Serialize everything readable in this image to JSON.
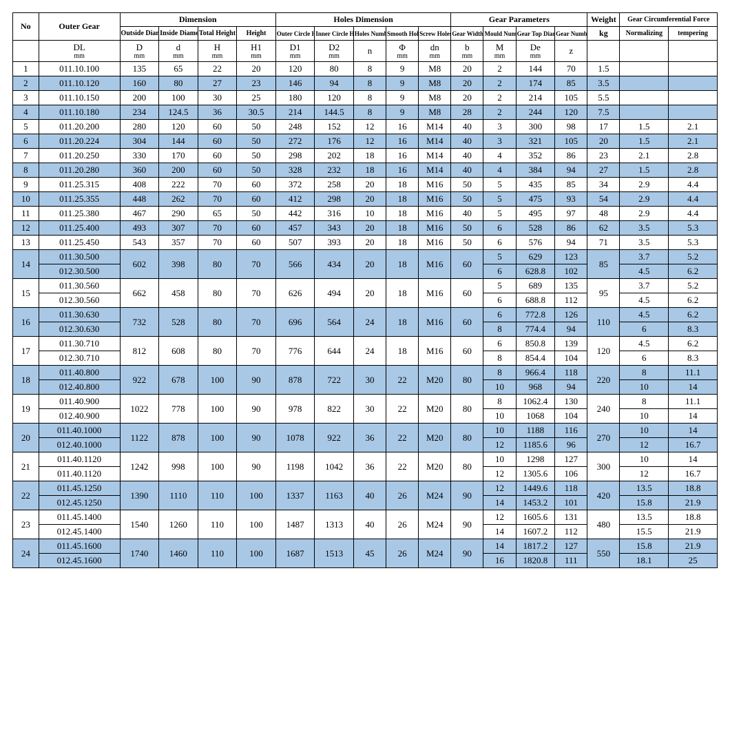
{
  "colors": {
    "highlight": "#a9c8e6",
    "border": "#000000",
    "bg": "#ffffff",
    "text": "#000000"
  },
  "font": {
    "family": "Times New Roman, serif",
    "header_pt": 12,
    "body_pt": 13
  },
  "header": {
    "groups": {
      "no": "No",
      "outer_gear": "Outer Gear",
      "dimension": "Dimension",
      "holes_dimension": "Holes Dimension",
      "gear_parameters": "Gear Parameters",
      "weight": "Weight",
      "gear_circ_force": "Gear Circumferential Force"
    },
    "subs": {
      "outside_diameter": "Outside Diameter",
      "inside_diameter": "Inside Diameter",
      "total_height": "Total Height",
      "height": "Height",
      "outer_circle_holes_gap": "Outer Circle Holes Gap",
      "inner_circle_holes_gap": "Inner Circle Holes Gap",
      "holes_number": "Holes Number",
      "smooth_holes": "Smooth Holes",
      "screw_holes": "Screw Holes",
      "gear_width": "Gear Width",
      "mould_number": "Mould Number",
      "gear_top_diameter": "Gear Top Diameter",
      "gear_number": "Gear Number",
      "kg": "kg",
      "normalizing": "Normalizing",
      "tempering": "tempering"
    },
    "symbols": {
      "dl": "DL",
      "dl_unit": "mm",
      "D": "D",
      "D_unit": "mm",
      "d": "d",
      "d_unit": "mm",
      "H": "H",
      "H_unit": "mm",
      "H1": "H1",
      "H1_unit": "mm",
      "D1": "D1",
      "D1_unit": "mm",
      "D2": "D2",
      "D2_unit": "mm",
      "n": "n",
      "phi": "Φ",
      "phi_unit": "mm",
      "dn": "dn",
      "dn_unit": "mm",
      "b": "b",
      "b_unit": "mm",
      "M": "M",
      "M_unit": "mm",
      "De": "De",
      "De_unit": "mm",
      "z": "z"
    }
  },
  "rows": [
    {
      "no": "1",
      "hl": false,
      "gear": [
        "011.10.100"
      ],
      "D": "135",
      "d": "65",
      "H": "22",
      "H1": "20",
      "D1": "120",
      "D2": "80",
      "n": "8",
      "phi": "9",
      "dn": "M8",
      "b": "20",
      "M": [
        "2"
      ],
      "De": [
        "144"
      ],
      "z": [
        "70"
      ],
      "kg": "1.5",
      "norm": [
        ""
      ],
      "temp": [
        ""
      ]
    },
    {
      "no": "2",
      "hl": true,
      "gear": [
        "011.10.120"
      ],
      "D": "160",
      "d": "80",
      "H": "27",
      "H1": "23",
      "D1": "146",
      "D2": "94",
      "n": "8",
      "phi": "9",
      "dn": "M8",
      "b": "20",
      "M": [
        "2"
      ],
      "De": [
        "174"
      ],
      "z": [
        "85"
      ],
      "kg": "3.5",
      "norm": [
        ""
      ],
      "temp": [
        ""
      ]
    },
    {
      "no": "3",
      "hl": false,
      "gear": [
        "011.10.150"
      ],
      "D": "200",
      "d": "100",
      "H": "30",
      "H1": "25",
      "D1": "180",
      "D2": "120",
      "n": "8",
      "phi": "9",
      "dn": "M8",
      "b": "20",
      "M": [
        "2"
      ],
      "De": [
        "214"
      ],
      "z": [
        "105"
      ],
      "kg": "5.5",
      "norm": [
        ""
      ],
      "temp": [
        ""
      ]
    },
    {
      "no": "4",
      "hl": true,
      "gear": [
        "011.10.180"
      ],
      "D": "234",
      "d": "124.5",
      "H": "36",
      "H1": "30.5",
      "D1": "214",
      "D2": "144.5",
      "n": "8",
      "phi": "9",
      "dn": "M8",
      "b": "28",
      "M": [
        "2"
      ],
      "De": [
        "244"
      ],
      "z": [
        "120"
      ],
      "kg": "7.5",
      "norm": [
        ""
      ],
      "temp": [
        ""
      ]
    },
    {
      "no": "5",
      "hl": false,
      "gear": [
        "011.20.200"
      ],
      "D": "280",
      "d": "120",
      "H": "60",
      "H1": "50",
      "D1": "248",
      "D2": "152",
      "n": "12",
      "phi": "16",
      "dn": "M14",
      "b": "40",
      "M": [
        "3"
      ],
      "De": [
        "300"
      ],
      "z": [
        "98"
      ],
      "kg": "17",
      "norm": [
        "1.5"
      ],
      "temp": [
        "2.1"
      ]
    },
    {
      "no": "6",
      "hl": true,
      "gear": [
        "011.20.224"
      ],
      "D": "304",
      "d": "144",
      "H": "60",
      "H1": "50",
      "D1": "272",
      "D2": "176",
      "n": "12",
      "phi": "16",
      "dn": "M14",
      "b": "40",
      "M": [
        "3"
      ],
      "De": [
        "321"
      ],
      "z": [
        "105"
      ],
      "kg": "20",
      "norm": [
        "1.5"
      ],
      "temp": [
        "2.1"
      ]
    },
    {
      "no": "7",
      "hl": false,
      "gear": [
        "011.20.250"
      ],
      "D": "330",
      "d": "170",
      "H": "60",
      "H1": "50",
      "D1": "298",
      "D2": "202",
      "n": "18",
      "phi": "16",
      "dn": "M14",
      "b": "40",
      "M": [
        "4"
      ],
      "De": [
        "352"
      ],
      "z": [
        "86"
      ],
      "kg": "23",
      "norm": [
        "2.1"
      ],
      "temp": [
        "2.8"
      ]
    },
    {
      "no": "8",
      "hl": true,
      "gear": [
        "011.20.280"
      ],
      "D": "360",
      "d": "200",
      "H": "60",
      "H1": "50",
      "D1": "328",
      "D2": "232",
      "n": "18",
      "phi": "16",
      "dn": "M14",
      "b": "40",
      "M": [
        "4"
      ],
      "De": [
        "384"
      ],
      "z": [
        "94"
      ],
      "kg": "27",
      "norm": [
        "1.5"
      ],
      "temp": [
        "2.8"
      ]
    },
    {
      "no": "9",
      "hl": false,
      "gear": [
        "011.25.315"
      ],
      "D": "408",
      "d": "222",
      "H": "70",
      "H1": "60",
      "D1": "372",
      "D2": "258",
      "n": "20",
      "phi": "18",
      "dn": "M16",
      "b": "50",
      "M": [
        "5"
      ],
      "De": [
        "435"
      ],
      "z": [
        "85"
      ],
      "kg": "34",
      "norm": [
        "2.9"
      ],
      "temp": [
        "4.4"
      ]
    },
    {
      "no": "10",
      "hl": true,
      "gear": [
        "011.25.355"
      ],
      "D": "448",
      "d": "262",
      "H": "70",
      "H1": "60",
      "D1": "412",
      "D2": "298",
      "n": "20",
      "phi": "18",
      "dn": "M16",
      "b": "50",
      "M": [
        "5"
      ],
      "De": [
        "475"
      ],
      "z": [
        "93"
      ],
      "kg": "54",
      "norm": [
        "2.9"
      ],
      "temp": [
        "4.4"
      ]
    },
    {
      "no": "11",
      "hl": false,
      "gear": [
        "011.25.380"
      ],
      "D": "467",
      "d": "290",
      "H": "65",
      "H1": "50",
      "D1": "442",
      "D2": "316",
      "n": "10",
      "phi": "18",
      "dn": "M16",
      "b": "40",
      "M": [
        "5"
      ],
      "De": [
        "495"
      ],
      "z": [
        "97"
      ],
      "kg": "48",
      "norm": [
        "2.9"
      ],
      "temp": [
        "4.4"
      ]
    },
    {
      "no": "12",
      "hl": true,
      "gear": [
        "011.25.400"
      ],
      "D": "493",
      "d": "307",
      "H": "70",
      "H1": "60",
      "D1": "457",
      "D2": "343",
      "n": "20",
      "phi": "18",
      "dn": "M16",
      "b": "50",
      "M": [
        "6"
      ],
      "De": [
        "528"
      ],
      "z": [
        "86"
      ],
      "kg": "62",
      "norm": [
        "3.5"
      ],
      "temp": [
        "5.3"
      ]
    },
    {
      "no": "13",
      "hl": false,
      "gear": [
        "011.25.450"
      ],
      "D": "543",
      "d": "357",
      "H": "70",
      "H1": "60",
      "D1": "507",
      "D2": "393",
      "n": "20",
      "phi": "18",
      "dn": "M16",
      "b": "50",
      "M": [
        "6"
      ],
      "De": [
        "576"
      ],
      "z": [
        "94"
      ],
      "kg": "71",
      "norm": [
        "3.5"
      ],
      "temp": [
        "5.3"
      ]
    },
    {
      "no": "14",
      "hl": true,
      "gear": [
        "011.30.500",
        "012.30.500"
      ],
      "D": "602",
      "d": "398",
      "H": "80",
      "H1": "70",
      "D1": "566",
      "D2": "434",
      "n": "20",
      "phi": "18",
      "dn": "M16",
      "b": "60",
      "M": [
        "5",
        "6"
      ],
      "De": [
        "629",
        "628.8"
      ],
      "z": [
        "123",
        "102"
      ],
      "kg": "85",
      "norm": [
        "3.7",
        "4.5"
      ],
      "temp": [
        "5.2",
        "6.2"
      ]
    },
    {
      "no": "15",
      "hl": false,
      "gear": [
        "011.30.560",
        "012.30.560"
      ],
      "D": "662",
      "d": "458",
      "H": "80",
      "H1": "70",
      "D1": "626",
      "D2": "494",
      "n": "20",
      "phi": "18",
      "dn": "M16",
      "b": "60",
      "M": [
        "5",
        "6"
      ],
      "De": [
        "689",
        "688.8"
      ],
      "z": [
        "135",
        "112"
      ],
      "kg": "95",
      "norm": [
        "3.7",
        "4.5"
      ],
      "temp": [
        "5.2",
        "6.2"
      ]
    },
    {
      "no": "16",
      "hl": true,
      "gear": [
        "011.30.630",
        "012.30.630"
      ],
      "D": "732",
      "d": "528",
      "H": "80",
      "H1": "70",
      "D1": "696",
      "D2": "564",
      "n": "24",
      "phi": "18",
      "dn": "M16",
      "b": "60",
      "M": [
        "6",
        "8"
      ],
      "De": [
        "772.8",
        "774.4"
      ],
      "z": [
        "126",
        "94"
      ],
      "kg": "110",
      "norm": [
        "4.5",
        "6"
      ],
      "temp": [
        "6.2",
        "8.3"
      ]
    },
    {
      "no": "17",
      "hl": false,
      "gear": [
        "011.30.710",
        "012.30.710"
      ],
      "D": "812",
      "d": "608",
      "H": "80",
      "H1": "70",
      "D1": "776",
      "D2": "644",
      "n": "24",
      "phi": "18",
      "dn": "M16",
      "b": "60",
      "M": [
        "6",
        "8"
      ],
      "De": [
        "850.8",
        "854.4"
      ],
      "z": [
        "139",
        "104"
      ],
      "kg": "120",
      "norm": [
        "4.5",
        "6"
      ],
      "temp": [
        "6.2",
        "8.3"
      ]
    },
    {
      "no": "18",
      "hl": true,
      "gear": [
        "011.40.800",
        "012.40.800"
      ],
      "D": "922",
      "d": "678",
      "H": "100",
      "H1": "90",
      "D1": "878",
      "D2": "722",
      "n": "30",
      "phi": "22",
      "dn": "M20",
      "b": "80",
      "M": [
        "8",
        "10"
      ],
      "De": [
        "966.4",
        "968"
      ],
      "z": [
        "118",
        "94"
      ],
      "kg": "220",
      "norm": [
        "8",
        "10"
      ],
      "temp": [
        "11.1",
        "14"
      ]
    },
    {
      "no": "19",
      "hl": false,
      "gear": [
        "011.40.900",
        "012.40.900"
      ],
      "D": "1022",
      "d": "778",
      "H": "100",
      "H1": "90",
      "D1": "978",
      "D2": "822",
      "n": "30",
      "phi": "22",
      "dn": "M20",
      "b": "80",
      "M": [
        "8",
        "10"
      ],
      "De": [
        "1062.4",
        "1068"
      ],
      "z": [
        "130",
        "104"
      ],
      "kg": "240",
      "norm": [
        "8",
        "10"
      ],
      "temp": [
        "11.1",
        "14"
      ]
    },
    {
      "no": "20",
      "hl": true,
      "gear": [
        "011.40.1000",
        "012.40.1000"
      ],
      "D": "1122",
      "d": "878",
      "H": "100",
      "H1": "90",
      "D1": "1078",
      "D2": "922",
      "n": "36",
      "phi": "22",
      "dn": "M20",
      "b": "80",
      "M": [
        "10",
        "12"
      ],
      "De": [
        "1188",
        "1185.6"
      ],
      "z": [
        "116",
        "96"
      ],
      "kg": "270",
      "norm": [
        "10",
        "12"
      ],
      "temp": [
        "14",
        "16.7"
      ]
    },
    {
      "no": "21",
      "hl": false,
      "gear": [
        "011.40.1120",
        "011.40.1120"
      ],
      "D": "1242",
      "d": "998",
      "H": "100",
      "H1": "90",
      "D1": "1198",
      "D2": "1042",
      "n": "36",
      "phi": "22",
      "dn": "M20",
      "b": "80",
      "M": [
        "10",
        "12"
      ],
      "De": [
        "1298",
        "1305.6"
      ],
      "z": [
        "127",
        "106"
      ],
      "kg": "300",
      "norm": [
        "10",
        "12"
      ],
      "temp": [
        "14",
        "16.7"
      ]
    },
    {
      "no": "22",
      "hl": true,
      "gear": [
        "011.45.1250",
        "012.45.1250"
      ],
      "D": "1390",
      "d": "1110",
      "H": "110",
      "H1": "100",
      "D1": "1337",
      "D2": "1163",
      "n": "40",
      "phi": "26",
      "dn": "M24",
      "b": "90",
      "M": [
        "12",
        "14"
      ],
      "De": [
        "1449.6",
        "1453.2"
      ],
      "z": [
        "118",
        "101"
      ],
      "kg": "420",
      "norm": [
        "13.5",
        "15.8"
      ],
      "temp": [
        "18.8",
        "21.9"
      ]
    },
    {
      "no": "23",
      "hl": false,
      "gear": [
        "011.45.1400",
        "012.45.1400"
      ],
      "D": "1540",
      "d": "1260",
      "H": "110",
      "H1": "100",
      "D1": "1487",
      "D2": "1313",
      "n": "40",
      "phi": "26",
      "dn": "M24",
      "b": "90",
      "M": [
        "12",
        "14"
      ],
      "De": [
        "1605.6",
        "1607.2"
      ],
      "z": [
        "131",
        "112"
      ],
      "kg": "480",
      "norm": [
        "13.5",
        "15.5"
      ],
      "temp": [
        "18.8",
        "21.9"
      ]
    },
    {
      "no": "24",
      "hl": true,
      "gear": [
        "011.45.1600",
        "012.45.1600"
      ],
      "D": "1740",
      "d": "1460",
      "H": "110",
      "H1": "100",
      "D1": "1687",
      "D2": "1513",
      "n": "45",
      "phi": "26",
      "dn": "M24",
      "b": "90",
      "M": [
        "14",
        "16"
      ],
      "De": [
        "1817.2",
        "1820.8"
      ],
      "z": [
        "127",
        "111"
      ],
      "kg": "550",
      "norm": [
        "15.8",
        "18.1"
      ],
      "temp": [
        "21.9",
        "25"
      ]
    }
  ]
}
